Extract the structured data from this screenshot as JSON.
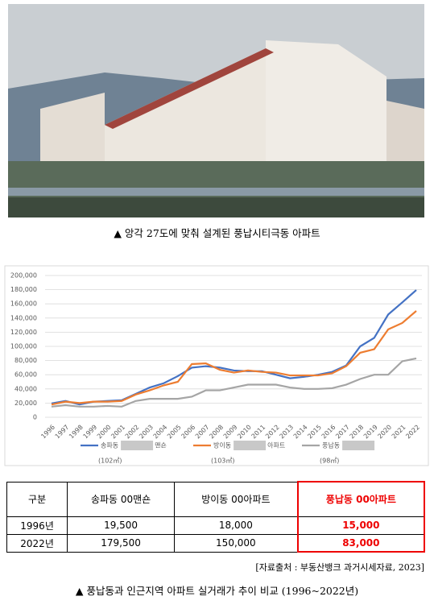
{
  "photo_caption": "▲ 앙각 27도에 맞춰 설계된 풍납시티극동 아파트",
  "chart_data": {
    "type": "line",
    "categories": [
      "1996",
      "1997",
      "1998",
      "1999",
      "2000",
      "2001",
      "2002",
      "2003",
      "2004",
      "2005",
      "2006",
      "2007",
      "2008",
      "2009",
      "2010",
      "2011",
      "2012",
      "2013",
      "2014",
      "2015",
      "2016",
      "2017",
      "2018",
      "2019",
      "2020",
      "2021",
      "2022"
    ],
    "series": [
      {
        "name": "송파동",
        "name_suffix": "맨숀",
        "area": "(102㎡)",
        "color": "#4472c4",
        "values": [
          19500,
          23000,
          18000,
          22000,
          23000,
          24000,
          33000,
          42000,
          48000,
          58000,
          70000,
          72000,
          70000,
          66000,
          65000,
          65000,
          60000,
          55000,
          57000,
          60000,
          64000,
          73000,
          100000,
          112000,
          145000,
          162000,
          179500
        ]
      },
      {
        "name": "방이동",
        "name_suffix": "아파트",
        "area": "(103㎡)",
        "color": "#ed7d31",
        "values": [
          18000,
          22000,
          20000,
          22000,
          22000,
          23000,
          32000,
          38000,
          45000,
          50000,
          75000,
          76000,
          67000,
          63000,
          66000,
          64000,
          63000,
          59000,
          59000,
          59000,
          62000,
          72000,
          91000,
          96000,
          124000,
          133000,
          150000
        ]
      },
      {
        "name": "풍납동",
        "area": "(98㎡)",
        "color": "#a5a5a5",
        "values": [
          15000,
          17000,
          15000,
          15000,
          16000,
          15000,
          23000,
          26000,
          26000,
          26000,
          29000,
          38000,
          38000,
          42000,
          46000,
          46000,
          46000,
          42000,
          40000,
          40000,
          41000,
          46000,
          54000,
          60000,
          60000,
          79000,
          83000
        ]
      }
    ],
    "ylim": [
      0,
      200000
    ],
    "yticks": [
      0,
      {
        "value": 20000,
        "label": "20,000"
      },
      {
        "value": 40000,
        "label": "40,000"
      },
      {
        "value": 60000,
        "label": "60,000"
      },
      {
        "value": 80000,
        "label": "80,000"
      },
      {
        "value": 100000,
        "label": "100,000"
      },
      {
        "value": 120000,
        "label": "120,000"
      },
      {
        "value": 140000,
        "label": "140,000"
      },
      {
        "value": 160000,
        "label": "160,000"
      },
      {
        "value": 180000,
        "label": "180,000"
      },
      {
        "value": 200000,
        "label": "200,000"
      }
    ],
    "grid": true
  },
  "table": {
    "header": [
      "구분",
      "송파동 00맨숀",
      "방이동 00아파트",
      "풍납동 00아파트"
    ],
    "rows": [
      [
        "1996년",
        "19,500",
        "18,000",
        "15,000"
      ],
      [
        "2022년",
        "179,500",
        "150,000",
        "83,000"
      ]
    ]
  },
  "source": "[자료출처 : 부동산뱅크 과거시세자료, 2023]",
  "caption": "▲ 풍납동과 인근지역 아파트 실거래가 추이 비교 (1996~2022년)"
}
